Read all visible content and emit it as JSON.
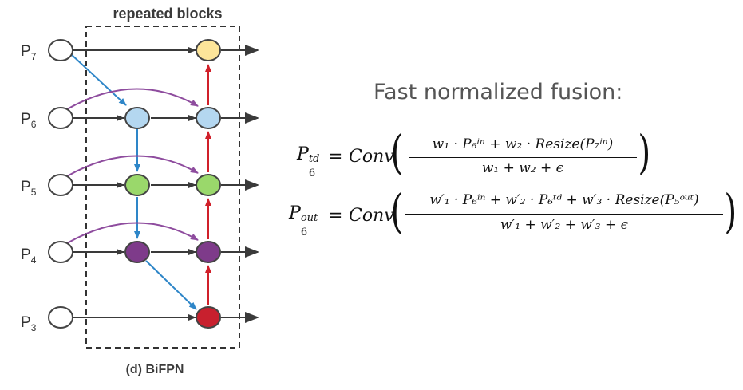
{
  "diagram": {
    "top_label": "repeated blocks",
    "bottom_label": "(d) BiFPN",
    "levels": [
      {
        "name": "P7",
        "base": "P",
        "sub": "7",
        "color": "#fde59a"
      },
      {
        "name": "P6",
        "base": "P",
        "sub": "6",
        "color": "#b4d7f0"
      },
      {
        "name": "P5",
        "base": "P",
        "sub": "5",
        "color": "#9ad86b"
      },
      {
        "name": "P4",
        "base": "P",
        "sub": "4",
        "color": "#7e3b8a"
      },
      {
        "name": "P3",
        "base": "P",
        "sub": "3",
        "color": "#c8202e"
      }
    ],
    "colors": {
      "input_node": "#ffffff",
      "edge_gray": "#3a3a3a",
      "edge_blue": "#2e86c8",
      "edge_red": "#d0202a",
      "edge_purple": "#8e4c9e",
      "block_border": "#333333"
    }
  },
  "fusion": {
    "title": "Fast normalized fusion:",
    "eq1": {
      "lhs_base": "P",
      "lhs_sup": "td",
      "lhs_sub": "6",
      "equals": "=",
      "func": "Conv",
      "numerator": "w₁ · P₆ⁱⁿ + w₂ · Resize(P₇ⁱⁿ)",
      "denominator": "w₁ + w₂ + ϵ"
    },
    "eq2": {
      "lhs_base": "P",
      "lhs_sup": "out",
      "lhs_sub": "6",
      "equals": "=",
      "func": "Conv",
      "numerator": "w′₁ · P₆ⁱⁿ + w′₂ · P₆ᵗᵈ + w′₃ · Resize(P₅ᵒᵘᵗ)",
      "denominator": "w′₁ + w′₂ + w′₃ + ϵ"
    }
  }
}
